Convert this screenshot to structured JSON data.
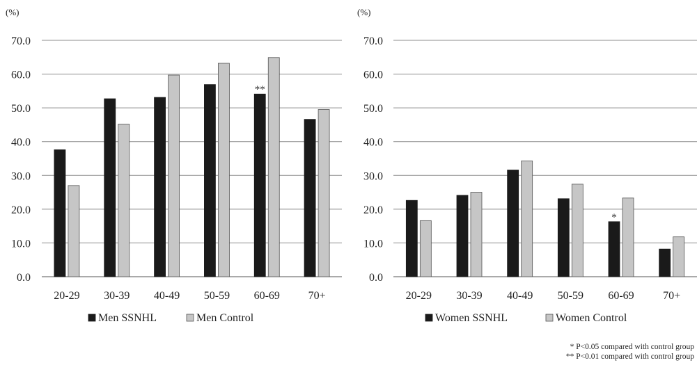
{
  "colors": {
    "ssnhl": "#1a1a1a",
    "control": "#c6c6c6",
    "control_stroke": "#555555",
    "grid": "#8c8c8c"
  },
  "chart_data": [
    {
      "type": "bar",
      "unit_label": "(%)",
      "categories": [
        "20-29",
        "30-39",
        "40-49",
        "50-59",
        "60-69",
        "70+"
      ],
      "series": [
        {
          "name": "Men SSNHL",
          "values": [
            37.6,
            52.7,
            53.1,
            56.9,
            54.1,
            46.6
          ]
        },
        {
          "name": "Men Control",
          "values": [
            27.0,
            45.2,
            59.7,
            63.2,
            64.9,
            49.5
          ]
        }
      ],
      "yticks": [
        "0.0",
        "10.0",
        "20.0",
        "30.0",
        "40.0",
        "50.0",
        "60.0",
        "70.0"
      ],
      "ylim": [
        0,
        70
      ],
      "grid": true,
      "legend_position": "bottom",
      "annotations": [
        {
          "category": "60-69",
          "series": 0,
          "text": "**"
        }
      ]
    },
    {
      "type": "bar",
      "unit_label": "(%)",
      "categories": [
        "20-29",
        "30-39",
        "40-49",
        "50-59",
        "60-69",
        "70+"
      ],
      "series": [
        {
          "name": "Women SSNHL",
          "values": [
            22.6,
            24.1,
            31.6,
            23.1,
            16.3,
            8.2
          ]
        },
        {
          "name": "Women Control",
          "values": [
            16.6,
            25.0,
            34.3,
            27.4,
            23.3,
            11.8
          ]
        }
      ],
      "yticks": [
        "0.0",
        "10.0",
        "20.0",
        "30.0",
        "40.0",
        "50.0",
        "60.0",
        "70.0"
      ],
      "ylim": [
        0,
        70
      ],
      "grid": true,
      "legend_position": "bottom",
      "annotations": [
        {
          "category": "60-69",
          "series": 0,
          "text": "*"
        }
      ]
    }
  ],
  "footnotes": [
    "* P<0.05 compared with control group",
    "** P<0.01 compared with control group"
  ]
}
